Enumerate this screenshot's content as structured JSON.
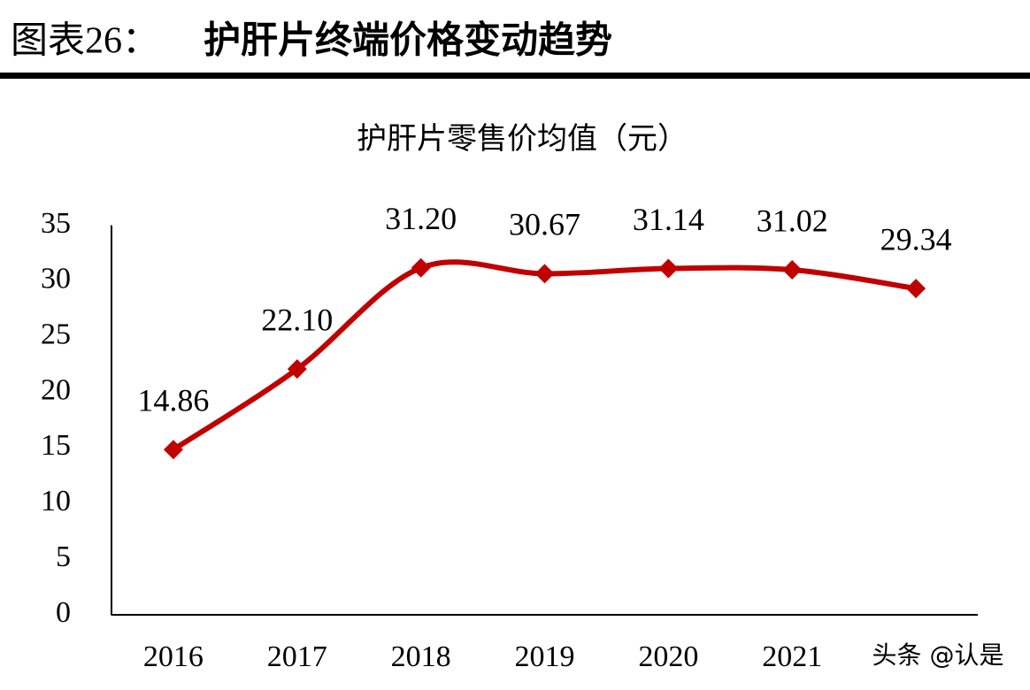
{
  "header": {
    "figure_label": "图表26：",
    "title": "护肝片终端价格变动趋势"
  },
  "chart_data": {
    "type": "line",
    "title": "护肝片零售价均值（元）",
    "categories": [
      "2016",
      "2017",
      "2018",
      "2019",
      "2020",
      "2021",
      null
    ],
    "series": [
      {
        "name": "护肝片零售价均值",
        "color": "#c00000",
        "values": [
          14.86,
          22.1,
          31.2,
          30.67,
          31.14,
          31.02,
          29.34
        ],
        "value_labels": [
          "14.86",
          "22.10",
          "31.20",
          "30.67",
          "31.14",
          "31.02",
          "29.34"
        ]
      }
    ],
    "ylim": [
      0,
      35
    ],
    "yticks": [
      0,
      5,
      10,
      15,
      20,
      25,
      30,
      35
    ],
    "grid": false,
    "smooth": true
  },
  "watermark": "头条 @认是"
}
